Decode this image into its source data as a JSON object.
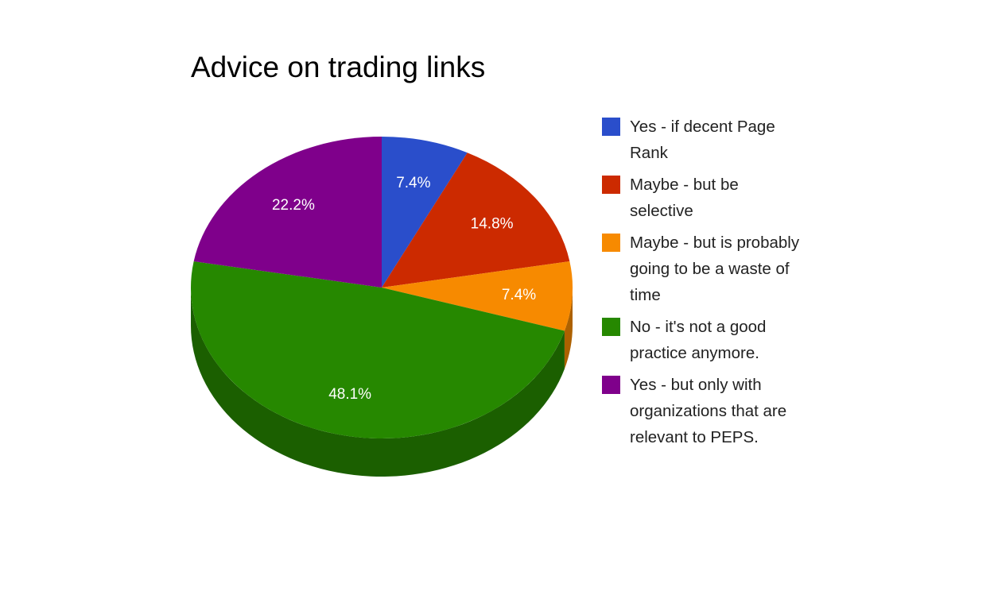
{
  "chart_data": {
    "type": "pie",
    "title": "Advice on trading links",
    "three_d": true,
    "legend_position": "right",
    "slices": [
      {
        "label": "Yes - if decent Page Rank",
        "value": 7.4,
        "display": "7.4%",
        "color": "#2a4ecb"
      },
      {
        "label": "Maybe - but be selective",
        "value": 14.8,
        "display": "14.8%",
        "color": "#cc2a00"
      },
      {
        "label": "Maybe - but is probably going to be a waste of time",
        "value": 7.4,
        "display": "7.4%",
        "color": "#f78a00"
      },
      {
        "label": "No - it's not a good practice anymore.",
        "value": 48.1,
        "display": "48.1%",
        "color": "#268800"
      },
      {
        "label": "Yes - but only with organizations that are relevant to PEPS.",
        "value": 22.2,
        "display": "22.2%",
        "color": "#7f008b"
      }
    ]
  }
}
